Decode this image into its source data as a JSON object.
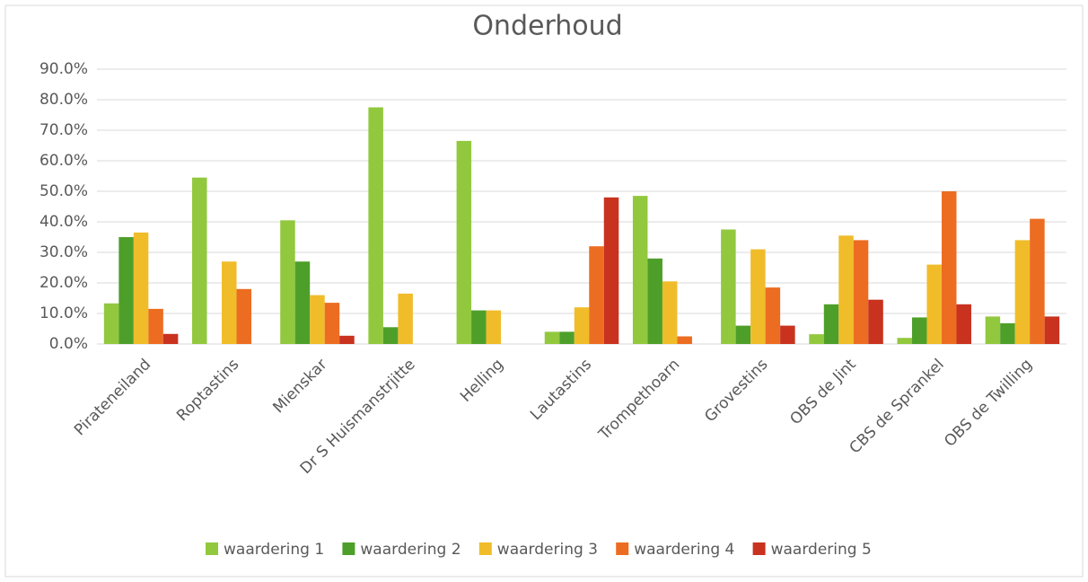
{
  "chart_data": {
    "type": "bar",
    "title": "Onderhoud",
    "categories": [
      "Pirateneiland",
      "Roptastins",
      "Mienskar",
      "Dr S Huismanstrjitte",
      "Helling",
      "Lautastins",
      "Trompethoarn",
      "Grovestins",
      "OBS de Jint",
      "CBS de Sprankel",
      "OBS de Twilling"
    ],
    "series": [
      {
        "name": "waardering 1",
        "color": "#92c83e",
        "values": [
          13.3,
          54.5,
          40.5,
          77.5,
          66.5,
          4,
          48.5,
          37.5,
          3.2,
          2,
          9
        ]
      },
      {
        "name": "waardering 2",
        "color": "#4e9f2a",
        "values": [
          35,
          0,
          27,
          5.5,
          11,
          4,
          28,
          6,
          13,
          8.7,
          6.8
        ]
      },
      {
        "name": "waardering 3",
        "color": "#f0bc2a",
        "values": [
          36.5,
          27,
          16,
          16.5,
          11,
          12,
          20.5,
          31,
          35.5,
          26,
          34
        ]
      },
      {
        "name": "waardering 4",
        "color": "#ec6d21",
        "values": [
          11.5,
          18,
          13.5,
          0,
          0,
          32,
          2.5,
          18.5,
          34,
          50,
          41
        ]
      },
      {
        "name": "waardering 5",
        "color": "#c8321f",
        "values": [
          3.3,
          0,
          2.7,
          0,
          0,
          48,
          0,
          6,
          14.5,
          13,
          9
        ]
      }
    ],
    "ylim": [
      0,
      90
    ],
    "yticks": [
      {
        "value": 0,
        "label": "0.0%"
      },
      {
        "value": 10,
        "label": "10.0%"
      },
      {
        "value": 20,
        "label": "20.0%"
      },
      {
        "value": 30,
        "label": "30.0%"
      },
      {
        "value": 40,
        "label": "40.0%"
      },
      {
        "value": 50,
        "label": "50.0%"
      },
      {
        "value": 60,
        "label": "60.0%"
      },
      {
        "value": 70,
        "label": "70.0%"
      },
      {
        "value": 80,
        "label": "80.0%"
      },
      {
        "value": 90,
        "label": "90.0%"
      }
    ],
    "grid": true,
    "legend": "bottom"
  }
}
